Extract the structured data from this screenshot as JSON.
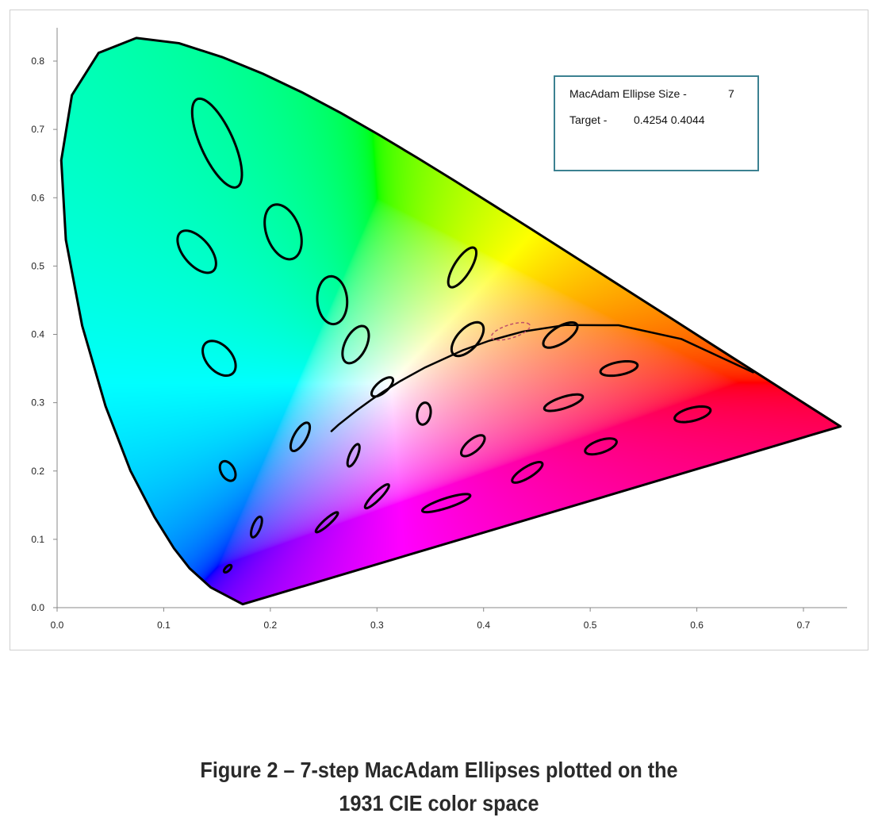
{
  "chart_data": {
    "type": "scatter",
    "title": "",
    "xlabel": "",
    "ylabel": "",
    "xlim": [
      0.0,
      0.74
    ],
    "ylim": [
      0.0,
      0.85
    ],
    "x_ticks": [
      "0.0",
      "0.1",
      "0.2",
      "0.3",
      "0.4",
      "0.5",
      "0.6",
      "0.7"
    ],
    "y_ticks": [
      "0.0",
      "0.1",
      "0.2",
      "0.3",
      "0.4",
      "0.5",
      "0.6",
      "0.7",
      "0.8"
    ],
    "grid": false,
    "spectral_locus": [
      [
        0.1741,
        0.005
      ],
      [
        0.144,
        0.0297
      ],
      [
        0.1241,
        0.0578
      ],
      [
        0.1096,
        0.0868
      ],
      [
        0.0913,
        0.1327
      ],
      [
        0.0687,
        0.2007
      ],
      [
        0.0454,
        0.295
      ],
      [
        0.0235,
        0.4127
      ],
      [
        0.0082,
        0.5384
      ],
      [
        0.0039,
        0.6548
      ],
      [
        0.0139,
        0.7502
      ],
      [
        0.0389,
        0.812
      ],
      [
        0.0743,
        0.8338
      ],
      [
        0.1142,
        0.8262
      ],
      [
        0.1547,
        0.8059
      ],
      [
        0.1929,
        0.7816
      ],
      [
        0.2296,
        0.7543
      ],
      [
        0.2658,
        0.7243
      ],
      [
        0.3016,
        0.6923
      ],
      [
        0.3373,
        0.6589
      ],
      [
        0.3731,
        0.6245
      ],
      [
        0.4087,
        0.5896
      ],
      [
        0.4441,
        0.5547
      ],
      [
        0.4788,
        0.5202
      ],
      [
        0.5125,
        0.4866
      ],
      [
        0.5448,
        0.4544
      ],
      [
        0.5752,
        0.4242
      ],
      [
        0.6029,
        0.3965
      ],
      [
        0.627,
        0.3725
      ],
      [
        0.6658,
        0.334
      ],
      [
        0.6915,
        0.3083
      ],
      [
        0.719,
        0.2809
      ],
      [
        0.7347,
        0.2653
      ]
    ],
    "planckian_locus": [
      [
        0.2573,
        0.2583
      ],
      [
        0.2637,
        0.2674
      ],
      [
        0.2807,
        0.2884
      ],
      [
        0.2952,
        0.3048
      ],
      [
        0.3064,
        0.3166
      ],
      [
        0.3221,
        0.3318
      ],
      [
        0.3451,
        0.3516
      ],
      [
        0.3805,
        0.3768
      ],
      [
        0.4053,
        0.3907
      ],
      [
        0.4369,
        0.4041
      ],
      [
        0.477,
        0.4137
      ],
      [
        0.5267,
        0.4133
      ],
      [
        0.5857,
        0.3931
      ],
      [
        0.6528,
        0.3444
      ]
    ],
    "ellipse_step": 7,
    "ellipses": [
      {
        "x": 0.16,
        "y": 0.057,
        "a": 0.85,
        "b": 0.35,
        "theta": 62.5
      },
      {
        "x": 0.187,
        "y": 0.118,
        "a": 2.2,
        "b": 0.55,
        "theta": 77
      },
      {
        "x": 0.253,
        "y": 0.125,
        "a": 2.5,
        "b": 0.5,
        "theta": 55.5
      },
      {
        "x": 0.15,
        "y": 0.68,
        "a": 9.6,
        "b": 2.3,
        "theta": 105
      },
      {
        "x": 0.131,
        "y": 0.521,
        "a": 4.7,
        "b": 2.0,
        "theta": 112.5
      },
      {
        "x": 0.212,
        "y": 0.55,
        "a": 5.8,
        "b": 2.3,
        "theta": 100
      },
      {
        "x": 0.258,
        "y": 0.45,
        "a": 5.0,
        "b": 2.0,
        "theta": 92
      },
      {
        "x": 0.152,
        "y": 0.365,
        "a": 3.8,
        "b": 1.9,
        "theta": 110
      },
      {
        "x": 0.28,
        "y": 0.385,
        "a": 4.0,
        "b": 1.5,
        "theta": 75.5
      },
      {
        "x": 0.38,
        "y": 0.498,
        "a": 4.4,
        "b": 1.2,
        "theta": 70
      },
      {
        "x": 0.16,
        "y": 0.2,
        "a": 2.1,
        "b": 0.95,
        "theta": 104
      },
      {
        "x": 0.228,
        "y": 0.25,
        "a": 3.1,
        "b": 0.9,
        "theta": 72
      },
      {
        "x": 0.305,
        "y": 0.323,
        "a": 2.3,
        "b": 0.9,
        "theta": 58
      },
      {
        "x": 0.385,
        "y": 0.393,
        "a": 3.8,
        "b": 1.6,
        "theta": 65.5
      },
      {
        "x": 0.472,
        "y": 0.399,
        "a": 3.2,
        "b": 1.4,
        "theta": 51
      },
      {
        "x": 0.527,
        "y": 0.35,
        "a": 2.6,
        "b": 1.3,
        "theta": 20
      },
      {
        "x": 0.475,
        "y": 0.3,
        "a": 2.9,
        "b": 1.1,
        "theta": 29.5
      },
      {
        "x": 0.51,
        "y": 0.236,
        "a": 2.4,
        "b": 1.2,
        "theta": 33.5
      },
      {
        "x": 0.596,
        "y": 0.283,
        "a": 2.6,
        "b": 1.3,
        "theta": 26
      },
      {
        "x": 0.344,
        "y": 0.284,
        "a": 2.3,
        "b": 0.9,
        "theta": 85
      },
      {
        "x": 0.39,
        "y": 0.237,
        "a": 2.5,
        "b": 1.0,
        "theta": 58
      },
      {
        "x": 0.441,
        "y": 0.198,
        "a": 2.8,
        "b": 0.95,
        "theta": 47
      },
      {
        "x": 0.278,
        "y": 0.223,
        "a": 2.4,
        "b": 0.55,
        "theta": 75.5
      },
      {
        "x": 0.3,
        "y": 0.163,
        "a": 2.9,
        "b": 0.6,
        "theta": 58.5
      },
      {
        "x": 0.365,
        "y": 0.153,
        "a": 3.6,
        "b": 0.95,
        "theta": 28
      }
    ],
    "target_ellipse": {
      "x": 0.4254,
      "y": 0.4044,
      "a": 2.9,
      "b": 1.3,
      "theta": 30,
      "color": "#c0506a"
    },
    "colors": {
      "outline": "#000000",
      "legend_border": "#3c8191",
      "axis": "#888888"
    }
  },
  "legend": {
    "size_label": "MacAdam Ellipse Size -",
    "size_value": "7",
    "target_label": "Target -",
    "target_value": "0.4254 0.4044"
  },
  "caption": {
    "line1": "Figure 2 – 7-step MacAdam Ellipses plotted on the",
    "line2": "1931 CIE color space"
  }
}
